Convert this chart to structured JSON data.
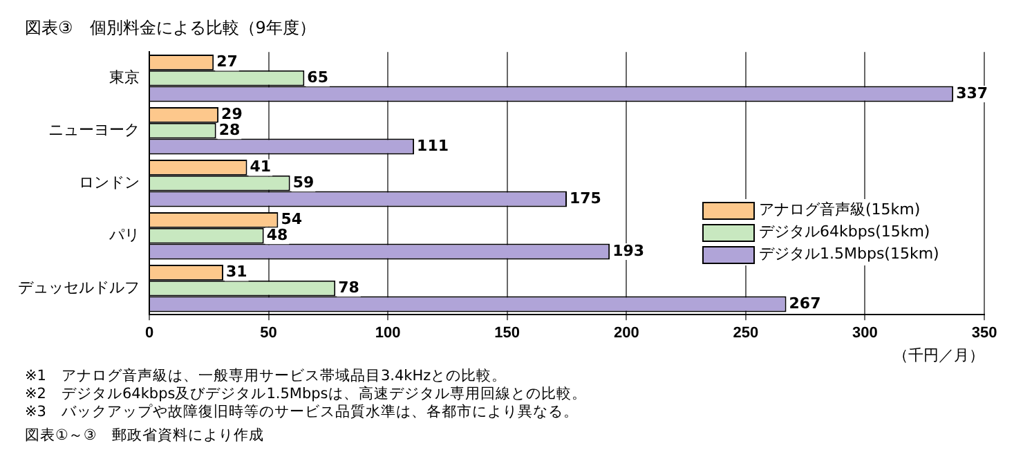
{
  "chart_data": {
    "type": "bar",
    "orientation": "horizontal",
    "title": "図表③　個別料金による比較（9年度）",
    "xlabel": "（千円／月）",
    "categories": [
      "東京",
      "ニューヨーク",
      "ロンドン",
      "パリ",
      "デュッセルドルフ"
    ],
    "series": [
      {
        "name": "アナログ音声級(15km)",
        "color": "#fdc88c",
        "values": [
          27,
          29,
          41,
          54,
          31
        ]
      },
      {
        "name": "デジタル64kbps(15km)",
        "color": "#c8e8c0",
        "values": [
          65,
          28,
          59,
          48,
          78
        ]
      },
      {
        "name": "デジタル1.5Mbps(15km)",
        "color": "#b0a4d8",
        "values": [
          337,
          111,
          175,
          193,
          267
        ]
      }
    ],
    "xlim": [
      0,
      350
    ],
    "xticks": [
      0,
      50,
      100,
      150,
      200,
      250,
      300,
      350
    ],
    "grid": "x",
    "legend": "right",
    "data_labels": true,
    "annotations": [
      "※1　アナログ音声級は、一般専用サービス帯域品目3.4kHzとの比較。",
      "※2　デジタル64kbps及びデジタル1.5Mbpsは、高速デジタル専用回線との比較。",
      "※3　バックアップや故障復旧時等のサービス品質水準は、各都市により異なる。",
      "図表①～③　郵政省資料により作成"
    ]
  }
}
